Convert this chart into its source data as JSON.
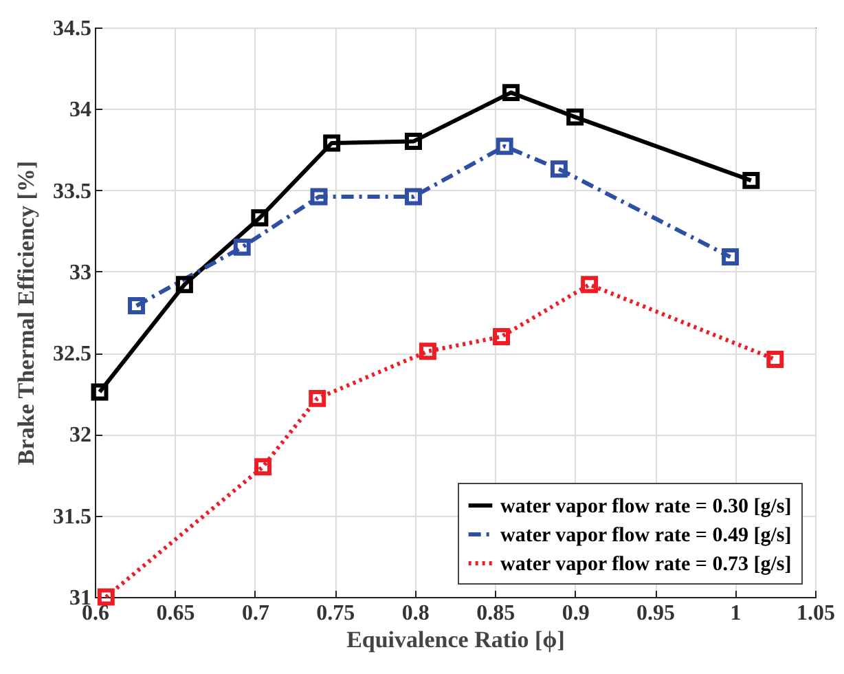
{
  "chart_data": {
    "type": "line",
    "xlabel": "Equivalence Ratio [ϕ]",
    "ylabel": "Brake Thermal Efficiency [%]",
    "xlim": [
      0.6,
      1.05
    ],
    "xticks": [
      0.6,
      0.65,
      0.7,
      0.75,
      0.8,
      0.85,
      0.9,
      0.95,
      1,
      1.05
    ],
    "ylim": [
      31,
      34.5
    ],
    "yticks": [
      31,
      31.5,
      32,
      32.5,
      33,
      33.5,
      34,
      34.5
    ],
    "grid": true,
    "legend": "bottom right",
    "marker": "square",
    "series": [
      {
        "name": "water vapor flow rate = 0.30 [g/s]",
        "color": "#000000",
        "line_style": "solid",
        "x": [
          0.603,
          0.656,
          0.703,
          0.748,
          0.799,
          0.86,
          0.9,
          1.01
        ],
        "values": [
          32.26,
          32.92,
          33.33,
          33.79,
          33.8,
          34.1,
          33.95,
          33.56
        ]
      },
      {
        "name": "water vapor flow rate = 0.49 [g/s]",
        "color": "#2e4fa3",
        "line_style": "dashed",
        "x": [
          0.626,
          0.692,
          0.74,
          0.799,
          0.856,
          0.89,
          0.997
        ],
        "values": [
          32.79,
          33.15,
          33.46,
          33.46,
          33.77,
          33.63,
          33.09
        ]
      },
      {
        "name": "water vapor flow rate = 0.73 [g/s]",
        "color": "#ee1c25",
        "line_style": "dotted",
        "x": [
          0.607,
          0.705,
          0.739,
          0.808,
          0.854,
          0.909,
          1.025
        ],
        "values": [
          31.0,
          31.8,
          32.22,
          32.51,
          32.6,
          32.92,
          32.46
        ]
      }
    ]
  }
}
